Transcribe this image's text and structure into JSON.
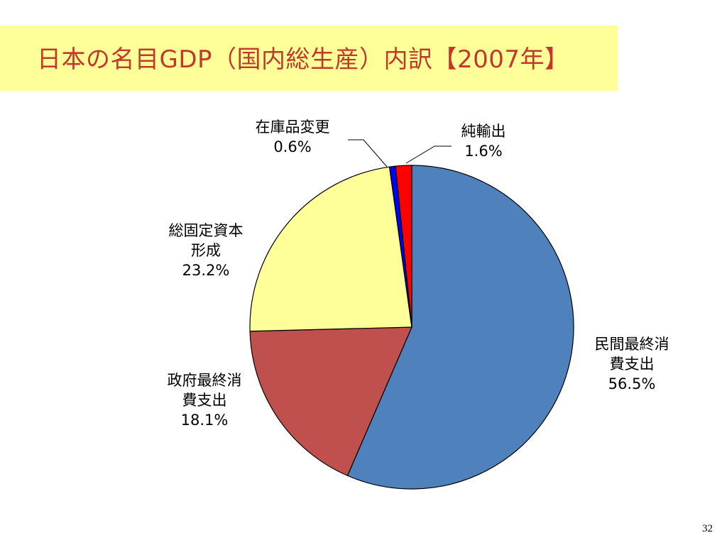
{
  "slide": {
    "title": "日本の名目GDP（国内総生産）内訳【2007年】",
    "page_number": "32"
  },
  "colors": {
    "title_band": "#ffff99",
    "title_text": "#c0392b"
  },
  "chart_data": {
    "type": "pie",
    "title": "",
    "slices": [
      {
        "label_lines": [
          "民間最終消",
          "費支出"
        ],
        "value": 56.5,
        "value_label": "56.5%",
        "color": "#4f81bd"
      },
      {
        "label_lines": [
          "政府最終消",
          "費支出"
        ],
        "value": 18.1,
        "value_label": "18.1%",
        "color": "#c0504d"
      },
      {
        "label_lines": [
          "総固定資本",
          "形成"
        ],
        "value": 23.2,
        "value_label": "23.2%",
        "color": "#ffff99"
      },
      {
        "label_lines": [
          "在庫品変更"
        ],
        "value": 0.6,
        "value_label": "0.6%",
        "color": "#0000ff"
      },
      {
        "label_lines": [
          "純輸出"
        ],
        "value": 1.6,
        "value_label": "1.6%",
        "color": "#ff0000"
      }
    ],
    "start": "12 o'clock",
    "direction": "clockwise",
    "legend": "none"
  }
}
